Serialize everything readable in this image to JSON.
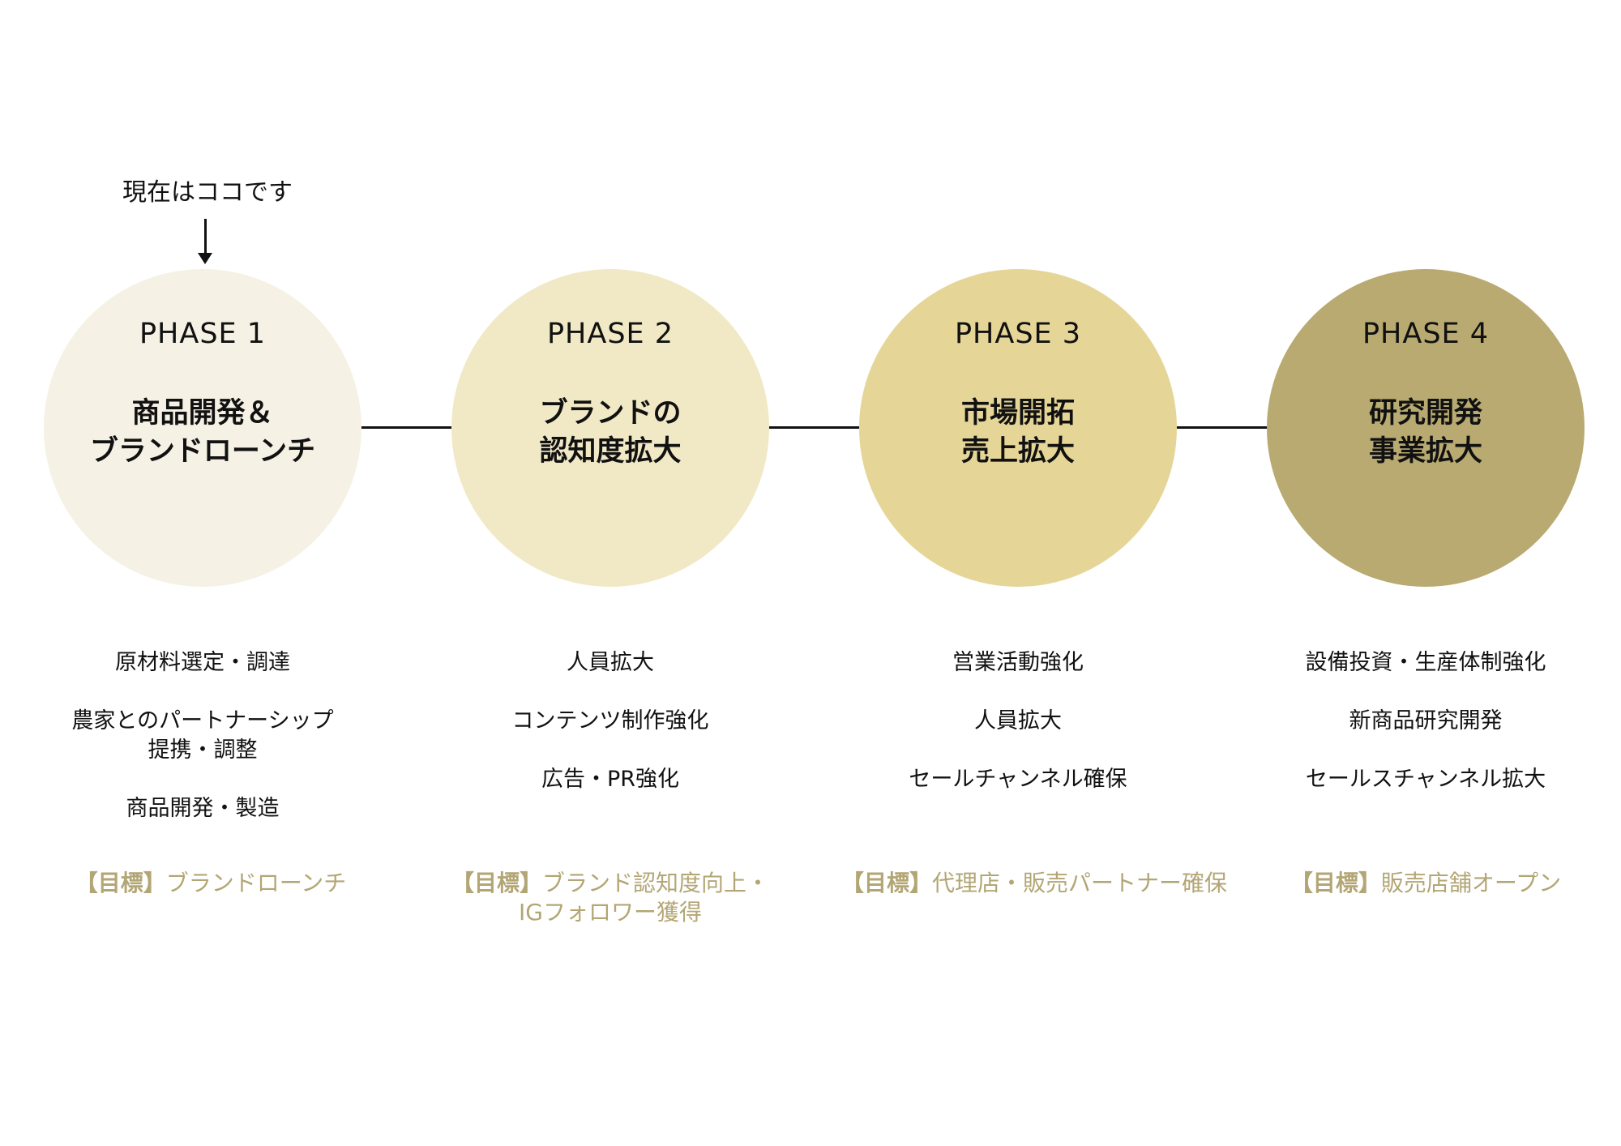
{
  "marker": {
    "label": "現在はココです"
  },
  "colors": {
    "phase1": "#f5f1e4",
    "phase2": "#f1e9c5",
    "phase3": "#e5d698",
    "phase4": "#b8aa70",
    "goal_text": "#b3a675",
    "line": "#111111"
  },
  "phases": [
    {
      "label": "PHASE 1",
      "title": [
        "商品開発＆",
        "ブランドローンチ"
      ],
      "items": [
        "原材料選定・調達",
        "農家とのパートナーシップ\n提携・調整",
        "商品開発・製造"
      ],
      "goal_tag": "【目標】",
      "goal": "ブランドローンチ"
    },
    {
      "label": "PHASE 2",
      "title": [
        "ブランドの",
        "認知度拡大"
      ],
      "items": [
        "人員拡大",
        "コンテンツ制作強化",
        "広告・PR強化"
      ],
      "goal_tag": "【目標】",
      "goal": "ブランド認知度向上・IGフォロワー獲得"
    },
    {
      "label": "PHASE 3",
      "title": [
        "市場開拓",
        "売上拡大"
      ],
      "items": [
        "営業活動強化",
        "人員拡大",
        "セールチャンネル確保"
      ],
      "goal_tag": "【目標】",
      "goal": "代理店・販売パートナー確保"
    },
    {
      "label": "PHASE 4",
      "title": [
        "研究開発",
        "事業拡大"
      ],
      "items": [
        "設備投資・生産体制強化",
        "新商品研究開発",
        "セールスチャンネル拡大"
      ],
      "goal_tag": "【目標】",
      "goal": "販売店舗オープン"
    }
  ]
}
